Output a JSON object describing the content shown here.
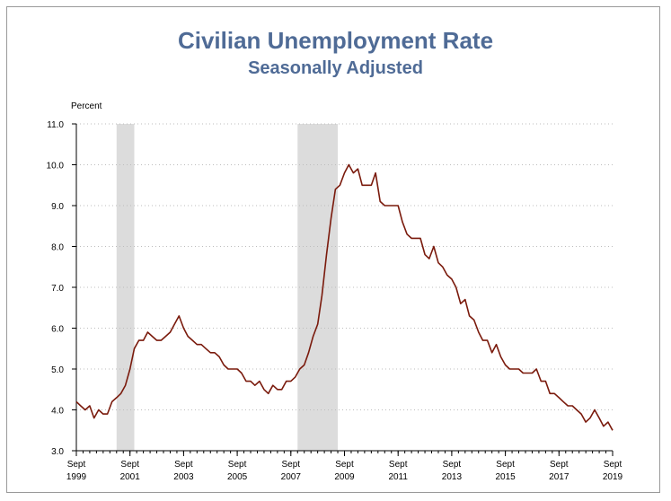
{
  "colors": {
    "title": "#4f6b96",
    "line": "#7a1a0c",
    "recession": "#dcdcdc",
    "grid": "#bdbdbd",
    "frame": "#9a9a9a"
  },
  "chart_data": {
    "type": "line",
    "title": "Civilian Unemployment Rate",
    "subtitle": "Seasonally Adjusted",
    "ylabel": "Percent",
    "xlabel": "",
    "ylim": [
      3.0,
      11.0
    ],
    "yticks": [
      "3.0",
      "4.0",
      "5.0",
      "6.0",
      "7.0",
      "8.0",
      "9.0",
      "10.0",
      "11.0"
    ],
    "xticks": [
      {
        "month": "Sept",
        "year": "1999",
        "t": 1999.67
      },
      {
        "month": "Sept",
        "year": "2001",
        "t": 2001.67
      },
      {
        "month": "Sept",
        "year": "2003",
        "t": 2003.67
      },
      {
        "month": "Sept",
        "year": "2005",
        "t": 2005.67
      },
      {
        "month": "Sept",
        "year": "2007",
        "t": 2007.67
      },
      {
        "month": "Sept",
        "year": "2009",
        "t": 2009.67
      },
      {
        "month": "Sept",
        "year": "2011",
        "t": 2011.67
      },
      {
        "month": "Sept",
        "year": "2013",
        "t": 2013.67
      },
      {
        "month": "Sept",
        "year": "2015",
        "t": 2015.67
      },
      {
        "month": "Sept",
        "year": "2017",
        "t": 2017.67
      },
      {
        "month": "Sept",
        "year": "2019",
        "t": 2019.67
      }
    ],
    "xlim": [
      1999.67,
      2019.67
    ],
    "grid": true,
    "recessions": [
      {
        "start": 2001.17,
        "end": 2001.83
      },
      {
        "start": 2007.92,
        "end": 2009.42
      }
    ],
    "series": [
      {
        "x": [
          1999.67,
          1999.83,
          2000.0,
          2000.17,
          2000.33,
          2000.5,
          2000.67,
          2000.83,
          2001.0,
          2001.17,
          2001.33,
          2001.5,
          2001.67,
          2001.83,
          2002.0,
          2002.17,
          2002.33,
          2002.5,
          2002.67,
          2002.83,
          2003.0,
          2003.17,
          2003.33,
          2003.5,
          2003.67,
          2003.83,
          2004.0,
          2004.17,
          2004.33,
          2004.5,
          2004.67,
          2004.83,
          2005.0,
          2005.17,
          2005.33,
          2005.5,
          2005.67,
          2005.83,
          2006.0,
          2006.17,
          2006.33,
          2006.5,
          2006.67,
          2006.83,
          2007.0,
          2007.17,
          2007.33,
          2007.5,
          2007.67,
          2007.83,
          2008.0,
          2008.17,
          2008.33,
          2008.5,
          2008.67,
          2008.83,
          2009.0,
          2009.17,
          2009.33,
          2009.5,
          2009.67,
          2009.83,
          2010.0,
          2010.17,
          2010.33,
          2010.5,
          2010.67,
          2010.83,
          2011.0,
          2011.17,
          2011.33,
          2011.5,
          2011.67,
          2011.83,
          2012.0,
          2012.17,
          2012.33,
          2012.5,
          2012.67,
          2012.83,
          2013.0,
          2013.17,
          2013.33,
          2013.5,
          2013.67,
          2013.83,
          2014.0,
          2014.17,
          2014.33,
          2014.5,
          2014.67,
          2014.83,
          2015.0,
          2015.17,
          2015.33,
          2015.5,
          2015.67,
          2015.83,
          2016.0,
          2016.17,
          2016.33,
          2016.5,
          2016.67,
          2016.83,
          2017.0,
          2017.17,
          2017.33,
          2017.5,
          2017.67,
          2017.83,
          2018.0,
          2018.17,
          2018.33,
          2018.5,
          2018.67,
          2018.83,
          2019.0,
          2019.17,
          2019.33,
          2019.5,
          2019.67
        ],
        "y": [
          4.2,
          4.1,
          4.0,
          4.1,
          3.8,
          4.0,
          3.9,
          3.9,
          4.2,
          4.3,
          4.4,
          4.6,
          5.0,
          5.5,
          5.7,
          5.7,
          5.9,
          5.8,
          5.7,
          5.7,
          5.8,
          5.9,
          6.1,
          6.3,
          6.0,
          5.8,
          5.7,
          5.6,
          5.6,
          5.5,
          5.4,
          5.4,
          5.3,
          5.1,
          5.0,
          5.0,
          5.0,
          4.9,
          4.7,
          4.7,
          4.6,
          4.7,
          4.5,
          4.4,
          4.6,
          4.5,
          4.5,
          4.7,
          4.7,
          4.8,
          5.0,
          5.1,
          5.4,
          5.8,
          6.1,
          6.8,
          7.8,
          8.7,
          9.4,
          9.5,
          9.8,
          10.0,
          9.8,
          9.9,
          9.5,
          9.5,
          9.5,
          9.8,
          9.1,
          9.0,
          9.0,
          9.0,
          9.0,
          8.6,
          8.3,
          8.2,
          8.2,
          8.2,
          7.8,
          7.7,
          8.0,
          7.6,
          7.5,
          7.3,
          7.2,
          7.0,
          6.6,
          6.7,
          6.3,
          6.2,
          5.9,
          5.7,
          5.7,
          5.4,
          5.6,
          5.3,
          5.1,
          5.0,
          5.0,
          5.0,
          4.9,
          4.9,
          4.9,
          5.0,
          4.7,
          4.7,
          4.4,
          4.4,
          4.3,
          4.2,
          4.1,
          4.1,
          4.0,
          3.9,
          3.7,
          3.8,
          4.0,
          3.8,
          3.6,
          3.7,
          3.5
        ]
      }
    ]
  }
}
